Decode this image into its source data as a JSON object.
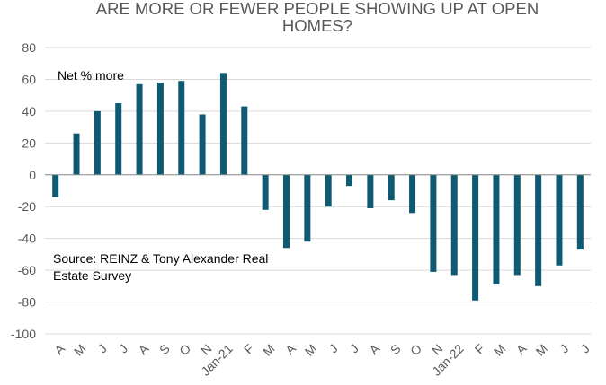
{
  "chart_data": {
    "type": "bar",
    "title_lines": [
      "ARE MORE OR FEWER PEOPLE SHOWING UP AT OPEN",
      "HOMES?"
    ],
    "series_label": "Net % more",
    "source_lines": [
      "Source: REINZ & Tony Alexander  Real",
      "Estate Survey"
    ],
    "categories": [
      "A",
      "M",
      "J",
      "J",
      "A",
      "S",
      "O",
      "N",
      "Jan-21",
      "F",
      "M",
      "A",
      "M",
      "J",
      "J",
      "A",
      "S",
      "O",
      "N",
      "Jan-22",
      "F",
      "M",
      "A",
      "M",
      "J",
      "J"
    ],
    "values": [
      -14,
      26,
      40,
      45,
      57,
      58,
      59,
      38,
      64,
      43,
      -22,
      -46,
      -42,
      -20,
      -7,
      -21,
      -16,
      -24,
      -61,
      -63,
      -79,
      -69,
      -63,
      -70,
      -57,
      -47
    ],
    "ylim": [
      -100,
      80
    ],
    "yticks": [
      -100,
      -80,
      -60,
      -40,
      -20,
      0,
      20,
      40,
      60,
      80
    ],
    "grid": true,
    "bar_color": "#0e5a72",
    "grid_color": "#d9d9d9"
  }
}
